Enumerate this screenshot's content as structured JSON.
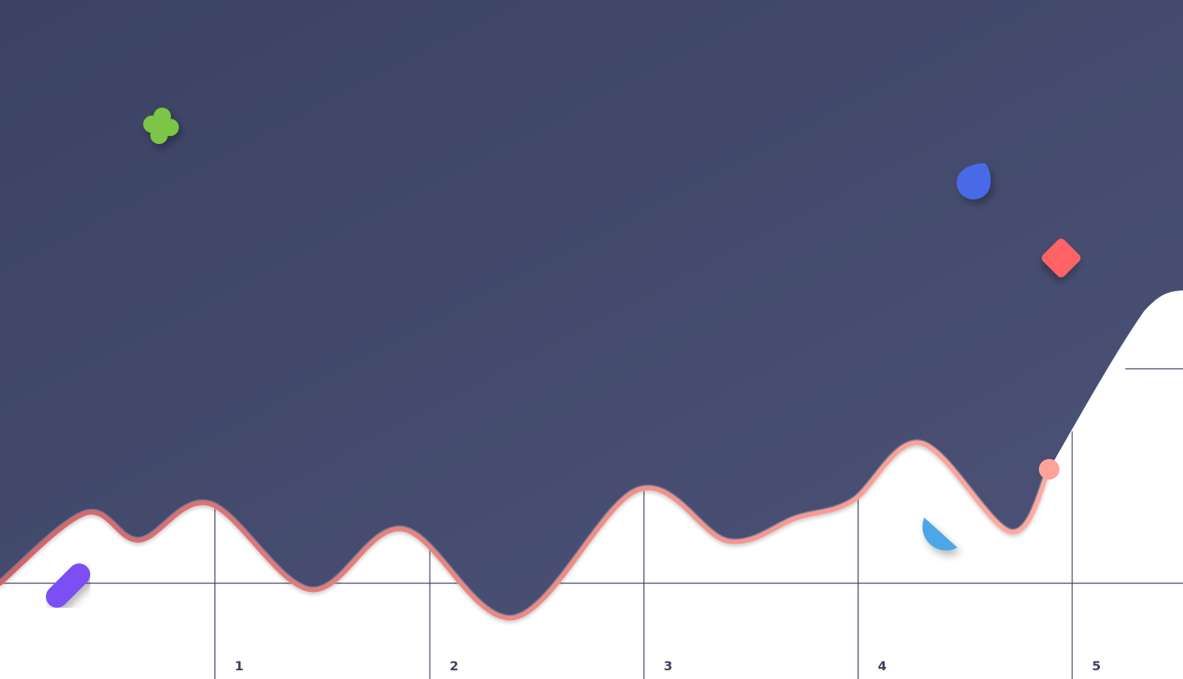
{
  "chart_data": {
    "type": "line",
    "title": "",
    "xlabel": "",
    "ylabel": "",
    "x_ticks": [
      "1",
      "2",
      "3",
      "4",
      "5"
    ],
    "xlim": [
      0,
      5.4
    ],
    "ylim": [
      -1,
      6
    ],
    "grid": {
      "vertical": true,
      "horizontal_baseline": true
    },
    "series": [
      {
        "values": [
          {
            "x": 0.0,
            "y": 0.0
          },
          {
            "x": 0.4,
            "y": 0.75
          },
          {
            "x": 0.65,
            "y": 0.46
          },
          {
            "x": 0.98,
            "y": 0.85
          },
          {
            "x": 1.45,
            "y": -0.07
          },
          {
            "x": 1.88,
            "y": 0.58
          },
          {
            "x": 2.4,
            "y": -0.37
          },
          {
            "x": 2.98,
            "y": 1.0
          },
          {
            "x": 3.4,
            "y": 0.45
          },
          {
            "x": 3.72,
            "y": 0.7
          },
          {
            "x": 3.98,
            "y": 0.88
          },
          {
            "x": 4.3,
            "y": 1.5
          },
          {
            "x": 4.72,
            "y": 0.55
          },
          {
            "x": 4.9,
            "y": 1.22
          }
        ]
      }
    ],
    "colors": {
      "background_area": "#434a6e",
      "line_start": "#cf636b",
      "line_end": "#ffaaa0",
      "endpoint_marker": "#ffa39a",
      "grid": "#3d4260"
    }
  },
  "decorations": [
    {
      "name": "clover-icon",
      "color": "#7bc546"
    },
    {
      "name": "droplet-icon",
      "color": "#4a6ae8"
    },
    {
      "name": "diamond-icon",
      "color": "#ff6466"
    },
    {
      "name": "pill-icon",
      "color": "#7c4ff5"
    },
    {
      "name": "quarter-circle-icon",
      "color": "#4da6e6"
    }
  ]
}
